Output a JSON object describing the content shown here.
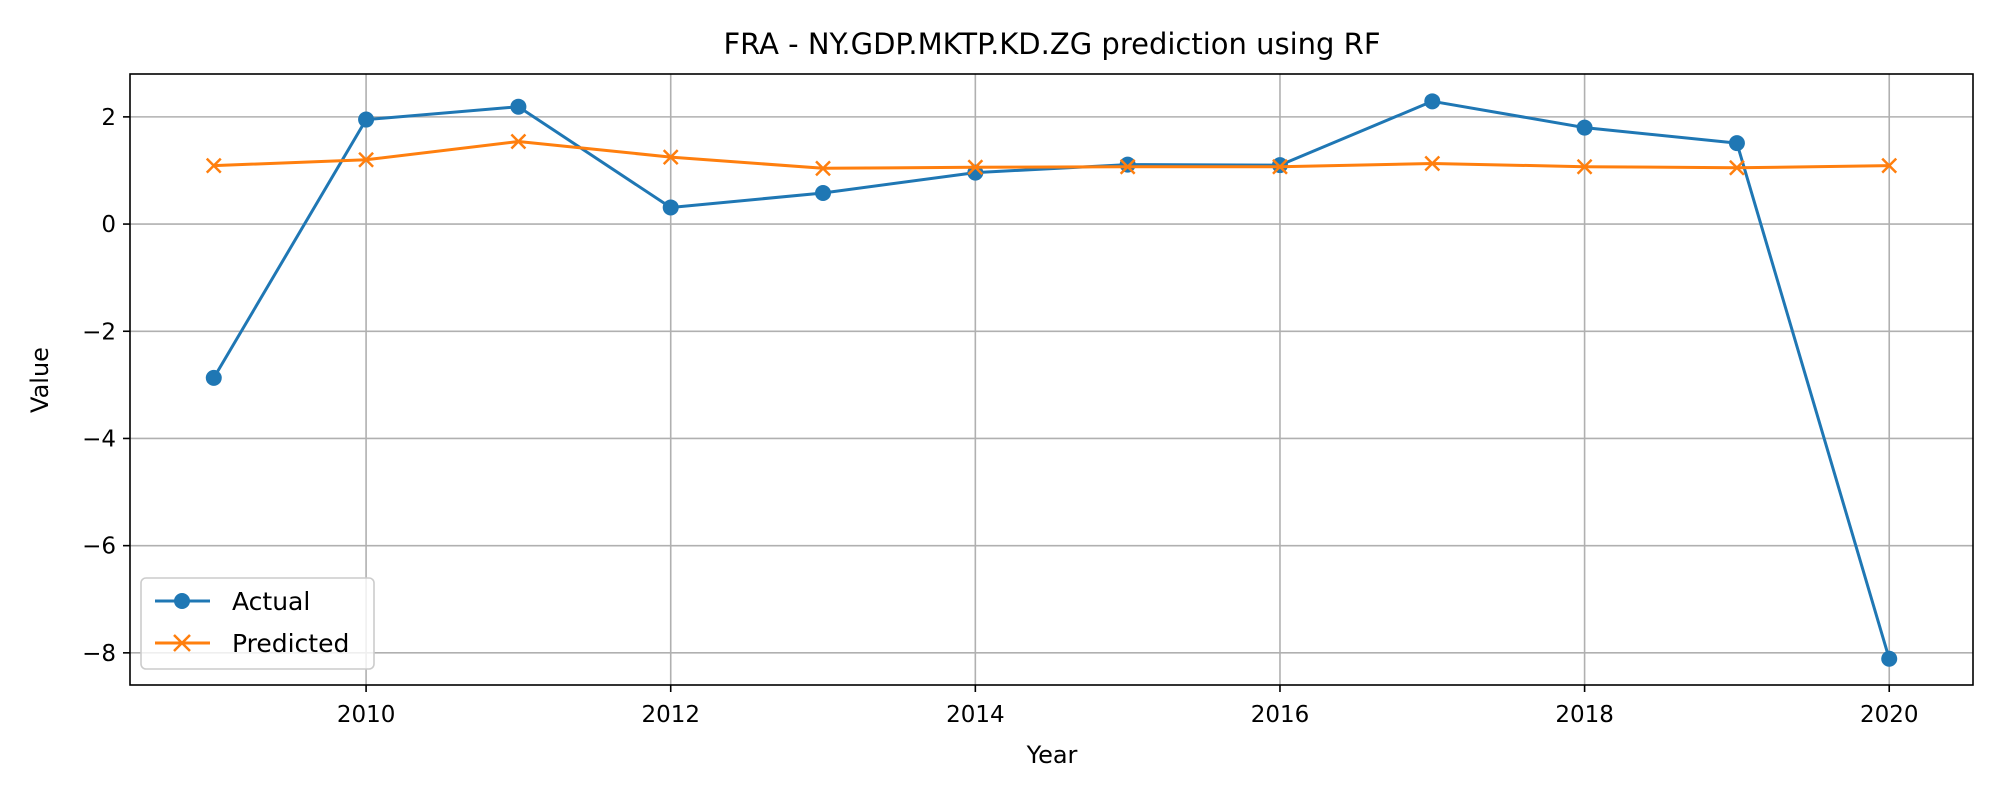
{
  "chart_data": {
    "type": "line",
    "title": "FRA - NY.GDP.MKTP.KD.ZG prediction using RF",
    "xlabel": "Year",
    "ylabel": "Value",
    "x": [
      2009,
      2010,
      2011,
      2012,
      2013,
      2014,
      2015,
      2016,
      2017,
      2018,
      2019,
      2020
    ],
    "xlim": [
      2008.45,
      2020.55
    ],
    "ylim": [
      -8.6,
      2.8
    ],
    "x_ticks": [
      2010,
      2012,
      2014,
      2016,
      2018,
      2020
    ],
    "x_tick_labels": [
      "2010",
      "2012",
      "2014",
      "2016",
      "2018",
      "2020"
    ],
    "y_ticks": [
      -8,
      -6,
      -4,
      -2,
      0,
      2
    ],
    "y_tick_labels": [
      "−8",
      "−6",
      "−4",
      "−2",
      "0",
      "2"
    ],
    "grid": true,
    "legend_position": "lower-left",
    "series": [
      {
        "name": "Actual",
        "color": "#1f77b4",
        "marker": "circle",
        "values": [
          -2.87,
          1.95,
          2.19,
          0.31,
          0.58,
          0.96,
          1.11,
          1.1,
          2.29,
          1.8,
          1.51,
          -8.11
        ]
      },
      {
        "name": "Predicted",
        "color": "#ff7f0e",
        "marker": "x",
        "values": [
          1.09,
          1.2,
          1.54,
          1.25,
          1.04,
          1.06,
          1.07,
          1.07,
          1.13,
          1.07,
          1.05,
          1.09
        ]
      }
    ]
  }
}
